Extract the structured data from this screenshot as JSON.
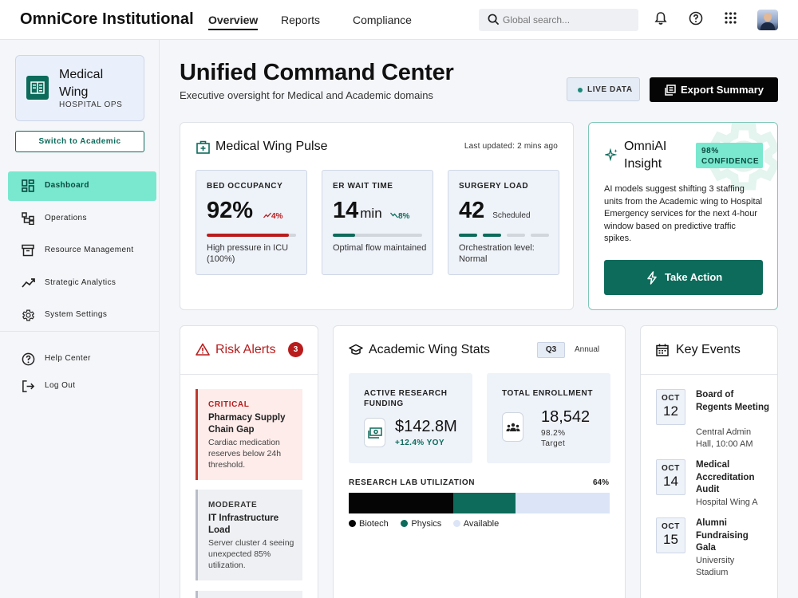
{
  "header": {
    "brand": "OmniCore Institutional",
    "nav": [
      "Overview",
      "Reports",
      "Compliance"
    ],
    "search_placeholder": "Global search..."
  },
  "sidebar": {
    "org_name": "Medical Wing",
    "org_sub": "HOSPITAL OPS",
    "switch_label": "Switch to Academic",
    "items": [
      "Dashboard",
      "Operations",
      "Resource Management",
      "Strategic Analytics",
      "System Settings"
    ],
    "footer_items": [
      "Help Center",
      "Log Out"
    ]
  },
  "page": {
    "title": "Unified Command Center",
    "subtitle": "Executive oversight for Medical and Academic domains",
    "live_label": "LIVE DATA",
    "export_label": "Export Summary"
  },
  "pulse": {
    "title": "Medical Wing Pulse",
    "updated": "Last updated: 2 mins ago",
    "metrics": [
      {
        "label": "BED OCCUPANCY",
        "value": "92%",
        "delta": "4%",
        "note": "High pressure in ICU (100%)",
        "level": 0.92
      },
      {
        "label": "ER WAIT TIME",
        "value": "14",
        "unit": "min",
        "delta": "8%",
        "note": "Optimal flow maintained",
        "level": 0.25
      },
      {
        "label": "SURGERY LOAD",
        "value": "42",
        "unit": "Scheduled",
        "note": "Orchestration level: Normal",
        "segments_active": 2,
        "segments_total": 4
      }
    ]
  },
  "insight": {
    "title": "OmniAI Insight",
    "confidence": "98% CONFIDENCE",
    "text": "AI models suggest shifting 3 staffing units from the Academic wing to Hospital Emergency services for the next 4-hour window based on predictive traffic spikes.",
    "action_label": "Take Action"
  },
  "risk": {
    "title": "Risk Alerts",
    "count": "3",
    "alerts": [
      {
        "level": "CRITICAL",
        "title": "Pharmacy Supply Chain Gap",
        "desc": "Cardiac medication reserves below 24h threshold."
      },
      {
        "level": "MODERATE",
        "title": "IT Infrastructure Load",
        "desc": "Server cluster 4 seeing unexpected 85% utilization."
      }
    ]
  },
  "academic": {
    "title": "Academic Wing Stats",
    "period_selected": "Q3",
    "period_other": "Annual",
    "funding_label": "ACTIVE RESEARCH FUNDING",
    "funding_value": "$142.8M",
    "funding_change": "+12.4% YOY",
    "enroll_label": "TOTAL ENROLLMENT",
    "enroll_value": "18,542",
    "enroll_target": "98.2% Target",
    "util_label": "RESEARCH LAB UTILIZATION",
    "util_pct": "64%",
    "util_segments": [
      {
        "name": "Biotech",
        "value": 40,
        "color": "#050505"
      },
      {
        "name": "Physics",
        "value": 24,
        "color": "#0d6b5b"
      },
      {
        "name": "Available",
        "value": 36,
        "color": "#dbe5f7"
      }
    ]
  },
  "events": {
    "title": "Key Events",
    "items": [
      {
        "month": "OCT",
        "day": "12",
        "name": "Board of Regents Meeting",
        "meta": "Central Admin Hall, 10:00 AM"
      },
      {
        "month": "OCT",
        "day": "14",
        "name": "Medical Accreditation Audit",
        "meta": "Hospital Wing A"
      },
      {
        "month": "OCT",
        "day": "15",
        "name": "Alumni Fundraising Gala",
        "meta": "University Stadium"
      }
    ]
  },
  "colors": {
    "accent": "#0d6b5b",
    "mint": "#79e8cf",
    "danger": "#b91c1c"
  }
}
